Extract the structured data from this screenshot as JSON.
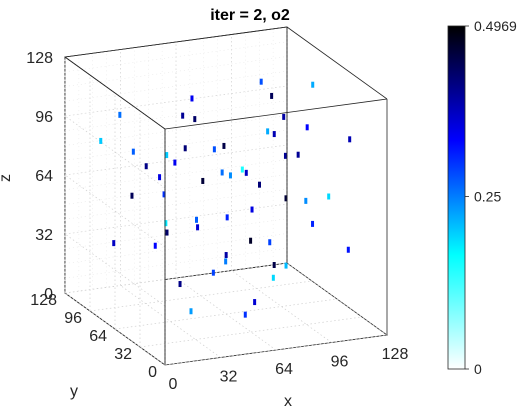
{
  "chart_data": {
    "type": "scatter",
    "title": "iter = 2, o2",
    "xlabel": "x",
    "ylabel": "y",
    "zlabel": "z",
    "xlim": [
      0,
      128
    ],
    "ylim": [
      0,
      128
    ],
    "zlim": [
      0,
      128
    ],
    "xticks": [
      "0",
      "32",
      "64",
      "96",
      "128"
    ],
    "yticks": [
      "0",
      "32",
      "64",
      "96",
      "128"
    ],
    "zticks": [
      "0",
      "32",
      "64",
      "96",
      "128"
    ],
    "grid": true,
    "colorbar": {
      "min": 0,
      "max": 0.4969,
      "ticks": [
        "0",
        "0.25",
        "0.4969"
      ],
      "tick_values": [
        0,
        0.25,
        0.4969
      ],
      "colormap": [
        "#ffffff",
        "#00ffff",
        "#0000ff",
        "#000000"
      ]
    },
    "points": [
      [
        28,
        60,
        92,
        0.2
      ],
      [
        32,
        78,
        74,
        0.35
      ],
      [
        18,
        64,
        86,
        0.41
      ],
      [
        40,
        90,
        60,
        0.3
      ],
      [
        52,
        40,
        100,
        0.45
      ],
      [
        60,
        70,
        88,
        0.28
      ],
      [
        72,
        20,
        110,
        0.38
      ],
      [
        88,
        64,
        96,
        0.22
      ],
      [
        100,
        40,
        104,
        0.33
      ],
      [
        110,
        90,
        72,
        0.4
      ],
      [
        14,
        30,
        66,
        0.18
      ],
      [
        26,
        100,
        58,
        0.44
      ],
      [
        44,
        56,
        52,
        0.36
      ],
      [
        56,
        84,
        46,
        0.27
      ],
      [
        68,
        30,
        80,
        0.42
      ],
      [
        80,
        98,
        40,
        0.31
      ],
      [
        92,
        24,
        70,
        0.24
      ],
      [
        104,
        76,
        54,
        0.46
      ],
      [
        116,
        48,
        62,
        0.19
      ],
      [
        20,
        110,
        30,
        0.37
      ],
      [
        36,
        18,
        40,
        0.29
      ],
      [
        48,
        104,
        34,
        0.43
      ],
      [
        62,
        60,
        30,
        0.25
      ],
      [
        74,
        86,
        24,
        0.39
      ],
      [
        86,
        36,
        32,
        0.21
      ],
      [
        98,
        108,
        22,
        0.47
      ],
      [
        112,
        14,
        44,
        0.32
      ],
      [
        10,
        80,
        110,
        0.26
      ],
      [
        30,
        44,
        118,
        0.4
      ],
      [
        50,
        12,
        96,
        0.15
      ],
      [
        66,
        112,
        102,
        0.34
      ],
      [
        84,
        50,
        120,
        0.44
      ],
      [
        96,
        90,
        114,
        0.28
      ],
      [
        120,
        30,
        98,
        0.38
      ],
      [
        24,
        20,
        20,
        0.23
      ],
      [
        42,
        74,
        16,
        0.41
      ],
      [
        58,
        26,
        12,
        0.3
      ],
      [
        76,
        54,
        8,
        0.36
      ],
      [
        94,
        70,
        14,
        0.19
      ],
      [
        108,
        100,
        10,
        0.45
      ],
      [
        16,
        48,
        48,
        0.33
      ],
      [
        34,
        116,
        76,
        0.27
      ],
      [
        54,
        94,
        82,
        0.42
      ],
      [
        70,
        44,
        62,
        0.35
      ],
      [
        90,
        116,
        56,
        0.24
      ],
      [
        102,
        56,
        84,
        0.4
      ],
      [
        122,
        82,
        36,
        0.31
      ],
      [
        8,
        100,
        90,
        0.2
      ],
      [
        38,
        36,
        84,
        0.46
      ],
      [
        64,
        8,
        56,
        0.29
      ],
      [
        82,
        78,
        70,
        0.37
      ],
      [
        114,
        64,
        118,
        0.22
      ],
      [
        12,
        14,
        104,
        0.34
      ],
      [
        46,
        64,
        108,
        0.43
      ],
      [
        78,
        100,
        64,
        0.26
      ],
      [
        118,
        110,
        86,
        0.39
      ]
    ]
  }
}
